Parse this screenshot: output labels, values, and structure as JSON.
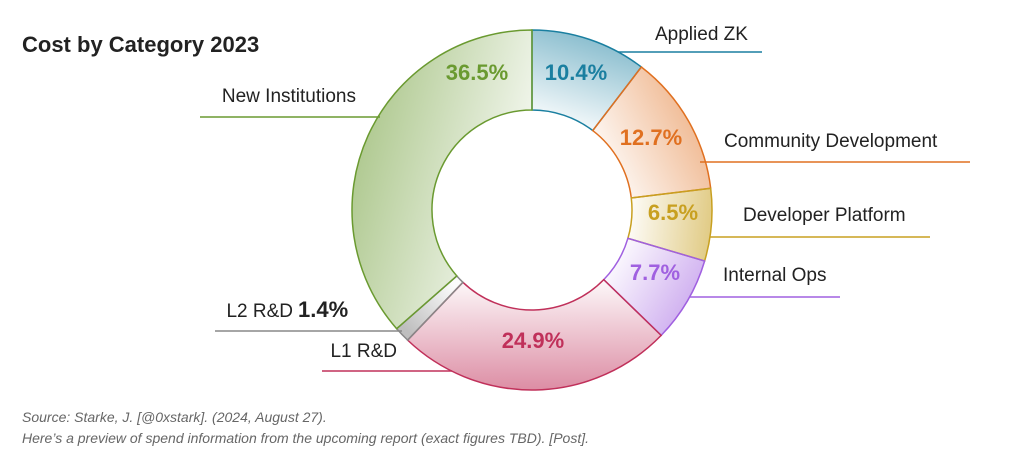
{
  "chart_data": {
    "type": "donut",
    "title": "Cost by Category 2023",
    "categories": [
      "Applied ZK",
      "Community Development",
      "Developer Platform",
      "Internal Ops",
      "L1 R&D",
      "L2 R&D",
      "New Institutions"
    ],
    "values": [
      10.4,
      12.7,
      6.5,
      7.7,
      24.9,
      1.4,
      36.5
    ],
    "value_labels": [
      "10.4%",
      "12.7%",
      "6.5%",
      "7.7%",
      "24.9%",
      "1.4%",
      "36.5%"
    ],
    "colors": [
      "#1a7fa0",
      "#e07020",
      "#c8a020",
      "#a060e0",
      "#c0305a",
      "#888888",
      "#6a9a30"
    ],
    "source": [
      "Source: Starke, J. [@0xstark]. (2024, August 27).",
      "Here’s a preview of spend information from the upcoming report (exact figures TBD). [Post]."
    ]
  }
}
